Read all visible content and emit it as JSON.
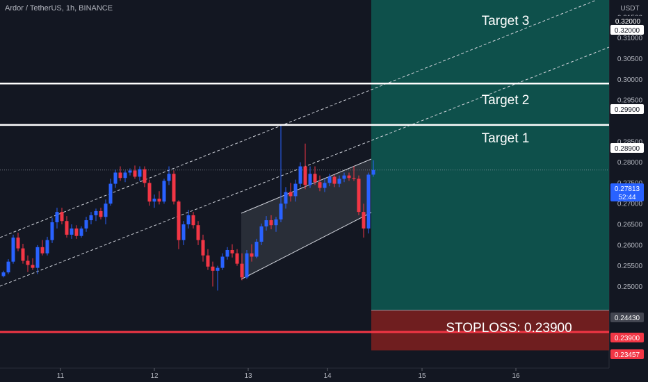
{
  "symbol": {
    "pair": "Ardor / TetherUS",
    "interval": "1h",
    "exchange": "BINANCE",
    "title": "Ardor / TetherUS, 1h, BINANCE"
  },
  "price_axis": {
    "currency": "USDT",
    "ticks": [
      "0.31500",
      "0.31000",
      "0.30500",
      "0.30000",
      "0.29500",
      "0.28500",
      "0.28000",
      "0.27500",
      "0.27000",
      "0.26500",
      "0.26000",
      "0.25500",
      "0.25000"
    ],
    "top_label": "0.32000"
  },
  "time_axis": {
    "ticks": [
      "11",
      "12",
      "13",
      "14",
      "15",
      "16"
    ]
  },
  "levels": [
    {
      "name": "target-3",
      "label": "Target 3",
      "price": 0.32,
      "value_text": "0.32000"
    },
    {
      "name": "target-2",
      "label": "Target 2",
      "price": 0.299,
      "value_text": "0.29900"
    },
    {
      "name": "target-1",
      "label": "Target 1",
      "price": 0.289,
      "value_text": "0.28900"
    },
    {
      "name": "stoploss",
      "label": "STOPLOSS: 0.23900",
      "price": 0.239,
      "value_text": "0.23900"
    }
  ],
  "current_price": {
    "value": 0.27813,
    "value_text": "0.27813",
    "countdown": "52:44"
  },
  "position": {
    "entry_text": "0.24430",
    "stop_text": "0.23457",
    "entry": 0.2443,
    "stop_bottom": 0.23457,
    "target": 0.32
  },
  "colors": {
    "background": "#131722",
    "up": "#2962ff",
    "down": "#f23645",
    "profit_zone": "#0e5a52",
    "loss_zone": "#7a1f1f",
    "target_line": "#ffffff",
    "stop_line": "#f23645"
  },
  "chart_data": {
    "type": "candlestick",
    "title": "Ardor / TetherUS, 1h, BINANCE",
    "xlabel": "",
    "ylabel": "USDT",
    "x_ticks": [
      "11",
      "12",
      "13",
      "14",
      "15",
      "16"
    ],
    "ylim": [
      0.2323,
      0.3185
    ],
    "candles": [
      [
        0.2525,
        0.2538,
        0.2522,
        0.2534
      ],
      [
        0.2534,
        0.2566,
        0.253,
        0.256
      ],
      [
        0.256,
        0.2625,
        0.2555,
        0.2618
      ],
      [
        0.2618,
        0.263,
        0.2585,
        0.2592
      ],
      [
        0.2592,
        0.2603,
        0.2555,
        0.2562
      ],
      [
        0.2562,
        0.2575,
        0.2535,
        0.2552
      ],
      [
        0.2552,
        0.2568,
        0.254,
        0.2545
      ],
      [
        0.2545,
        0.26,
        0.253,
        0.2595
      ],
      [
        0.2595,
        0.2612,
        0.2575,
        0.258
      ],
      [
        0.258,
        0.262,
        0.2575,
        0.2612
      ],
      [
        0.2612,
        0.2665,
        0.2605,
        0.2655
      ],
      [
        0.2655,
        0.269,
        0.264,
        0.268
      ],
      [
        0.268,
        0.269,
        0.265,
        0.2658
      ],
      [
        0.2658,
        0.267,
        0.2618,
        0.2625
      ],
      [
        0.2625,
        0.265,
        0.2615,
        0.264
      ],
      [
        0.264,
        0.2648,
        0.2615,
        0.2622
      ],
      [
        0.2622,
        0.2645,
        0.2618,
        0.264
      ],
      [
        0.264,
        0.2668,
        0.2632,
        0.266
      ],
      [
        0.266,
        0.268,
        0.265,
        0.2672
      ],
      [
        0.2672,
        0.2688,
        0.2658,
        0.2682
      ],
      [
        0.2682,
        0.269,
        0.2662,
        0.2668
      ],
      [
        0.2668,
        0.271,
        0.265,
        0.27
      ],
      [
        0.27,
        0.276,
        0.2695,
        0.2748
      ],
      [
        0.2748,
        0.2782,
        0.2738,
        0.2775
      ],
      [
        0.2775,
        0.279,
        0.2755,
        0.2762
      ],
      [
        0.2762,
        0.278,
        0.2752,
        0.2775
      ],
      [
        0.2775,
        0.2785,
        0.2768,
        0.278
      ],
      [
        0.278,
        0.2792,
        0.276,
        0.2765
      ],
      [
        0.2765,
        0.279,
        0.2755,
        0.2783
      ],
      [
        0.2783,
        0.279,
        0.274,
        0.275
      ],
      [
        0.275,
        0.2758,
        0.2695,
        0.2705
      ],
      [
        0.2705,
        0.2722,
        0.269,
        0.2712
      ],
      [
        0.2712,
        0.273,
        0.2698,
        0.2705
      ],
      [
        0.2705,
        0.276,
        0.27,
        0.2755
      ],
      [
        0.2755,
        0.279,
        0.2745,
        0.2772
      ],
      [
        0.2772,
        0.278,
        0.2698,
        0.2705
      ],
      [
        0.2705,
        0.2708,
        0.259,
        0.2612
      ],
      [
        0.2612,
        0.2658,
        0.26,
        0.265
      ],
      [
        0.265,
        0.2685,
        0.264,
        0.2672
      ],
      [
        0.2672,
        0.268,
        0.264,
        0.2648
      ],
      [
        0.2648,
        0.2658,
        0.26,
        0.2612
      ],
      [
        0.2612,
        0.2625,
        0.256,
        0.2575
      ],
      [
        0.2575,
        0.259,
        0.254,
        0.2548
      ],
      [
        0.2548,
        0.256,
        0.25,
        0.2538
      ],
      [
        0.2538,
        0.255,
        0.249,
        0.2545
      ],
      [
        0.2545,
        0.258,
        0.254,
        0.2572
      ],
      [
        0.2572,
        0.2595,
        0.2565,
        0.2588
      ],
      [
        0.2588,
        0.2602,
        0.257,
        0.258
      ],
      [
        0.258,
        0.259,
        0.255,
        0.2555
      ],
      [
        0.2555,
        0.258,
        0.2515,
        0.2522
      ],
      [
        0.2522,
        0.2588,
        0.2518,
        0.258
      ],
      [
        0.258,
        0.2602,
        0.256,
        0.2572
      ],
      [
        0.2572,
        0.2615,
        0.2568,
        0.2608
      ],
      [
        0.2608,
        0.2652,
        0.26,
        0.2645
      ],
      [
        0.2645,
        0.267,
        0.2635,
        0.266
      ],
      [
        0.266,
        0.2672,
        0.2638,
        0.2648
      ],
      [
        0.2648,
        0.2668,
        0.2632,
        0.2662
      ],
      [
        0.2662,
        0.289,
        0.2655,
        0.27
      ],
      [
        0.27,
        0.274,
        0.2688,
        0.2728
      ],
      [
        0.2728,
        0.275,
        0.2705,
        0.2718
      ],
      [
        0.2718,
        0.2758,
        0.2705,
        0.2748
      ],
      [
        0.2748,
        0.28,
        0.274,
        0.279
      ],
      [
        0.279,
        0.2845,
        0.2735,
        0.2745
      ],
      [
        0.2745,
        0.279,
        0.2738,
        0.2772
      ],
      [
        0.2772,
        0.279,
        0.2745,
        0.2752
      ],
      [
        0.2752,
        0.2768,
        0.273,
        0.2738
      ],
      [
        0.2738,
        0.276,
        0.2728,
        0.275
      ],
      [
        0.275,
        0.2772,
        0.2742,
        0.2765
      ],
      [
        0.2765,
        0.277,
        0.274,
        0.2748
      ],
      [
        0.2748,
        0.2768,
        0.274,
        0.276
      ],
      [
        0.276,
        0.2775,
        0.2752,
        0.2768
      ],
      [
        0.2768,
        0.2775,
        0.2755,
        0.2762
      ],
      [
        0.2762,
        0.279,
        0.2755,
        0.276
      ],
      [
        0.276,
        0.2768,
        0.2672,
        0.268
      ],
      [
        0.268,
        0.27,
        0.2618,
        0.264
      ],
      [
        0.264,
        0.2775,
        0.2628,
        0.277
      ],
      [
        0.277,
        0.2805,
        0.2765,
        0.27813
      ]
    ]
  }
}
